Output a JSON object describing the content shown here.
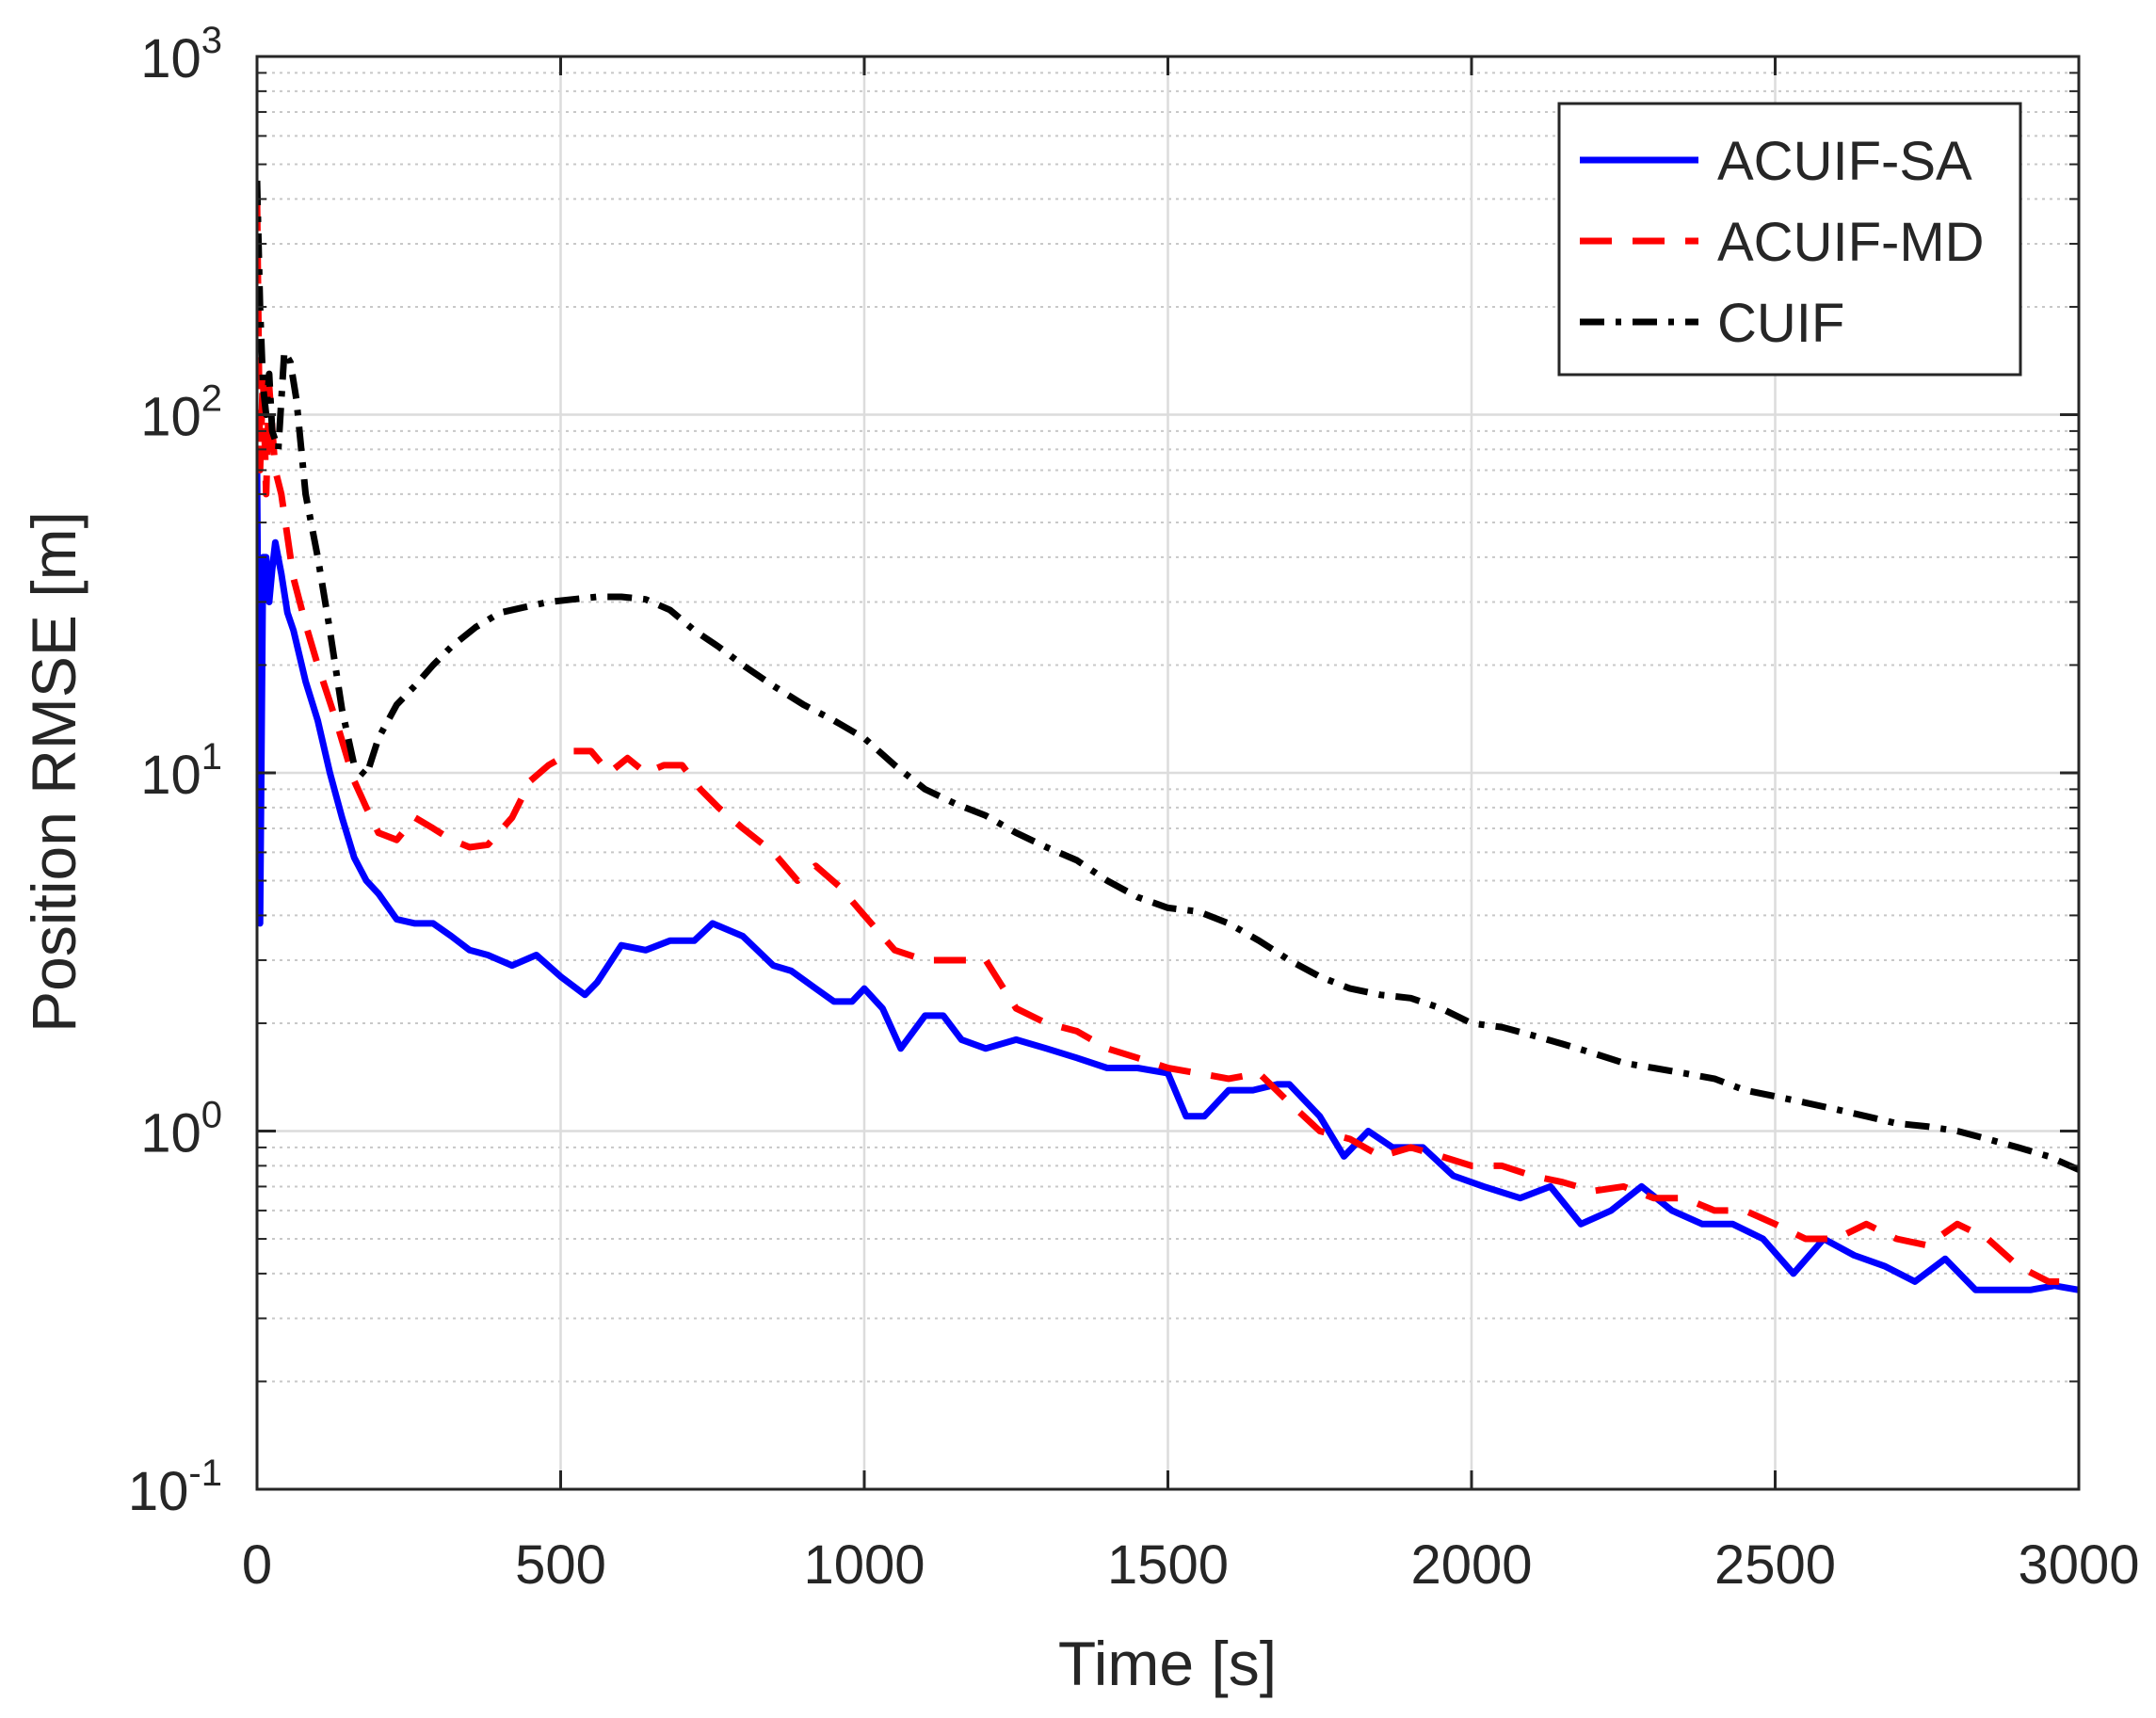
{
  "chart_data": {
    "type": "line",
    "title": "",
    "xlabel": "Time [s]",
    "ylabel": "Position RMSE [m]",
    "xlim": [
      0,
      3000
    ],
    "ylim": [
      0.1,
      1000
    ],
    "yscale": "log",
    "grid": true,
    "legend_position": "top-right",
    "x_ticks": [
      0,
      500,
      1000,
      1500,
      2000,
      2500,
      3000
    ],
    "x_tick_labels": [
      "0",
      "500",
      "1000",
      "1500",
      "2000",
      "2500",
      "3000"
    ],
    "y_ticks": [
      {
        "value": 0.1,
        "base": "10",
        "exp": "-1"
      },
      {
        "value": 1,
        "base": "10",
        "exp": "0"
      },
      {
        "value": 10,
        "base": "10",
        "exp": "1"
      },
      {
        "value": 100,
        "base": "10",
        "exp": "2"
      },
      {
        "value": 1000,
        "base": "10",
        "exp": "3"
      }
    ],
    "series": [
      {
        "name": "ACUIF-SA",
        "color": "#0000ff",
        "style": "solid",
        "x": [
          0,
          5,
          10,
          15,
          20,
          25,
          30,
          40,
          50,
          60,
          80,
          100,
          120,
          140,
          160,
          180,
          200,
          230,
          260,
          290,
          320,
          350,
          380,
          420,
          460,
          500,
          540,
          560,
          600,
          640,
          680,
          720,
          750,
          800,
          850,
          880,
          920,
          950,
          980,
          1000,
          1030,
          1060,
          1100,
          1130,
          1160,
          1200,
          1250,
          1300,
          1350,
          1400,
          1450,
          1500,
          1530,
          1560,
          1600,
          1640,
          1680,
          1700,
          1750,
          1790,
          1830,
          1870,
          1920,
          1970,
          2020,
          2080,
          2130,
          2180,
          2230,
          2280,
          2330,
          2380,
          2430,
          2480,
          2530,
          2580,
          2630,
          2680,
          2730,
          2780,
          2830,
          2870,
          2920,
          2960,
          3000
        ],
        "y": [
          70,
          3.8,
          40,
          40,
          30,
          37,
          44,
          36,
          28,
          25,
          18,
          14,
          10,
          7.5,
          5.8,
          5.0,
          4.6,
          3.9,
          3.8,
          3.8,
          3.5,
          3.2,
          3.1,
          2.9,
          3.1,
          2.7,
          2.4,
          2.6,
          3.3,
          3.2,
          3.4,
          3.4,
          3.8,
          3.5,
          2.9,
          2.8,
          2.5,
          2.3,
          2.3,
          2.5,
          2.2,
          1.7,
          2.1,
          2.1,
          1.8,
          1.7,
          1.8,
          1.7,
          1.6,
          1.5,
          1.5,
          1.45,
          1.1,
          1.1,
          1.3,
          1.3,
          1.35,
          1.35,
          1.1,
          0.85,
          1.0,
          0.9,
          0.9,
          0.75,
          0.7,
          0.65,
          0.7,
          0.55,
          0.6,
          0.7,
          0.6,
          0.55,
          0.55,
          0.5,
          0.4,
          0.5,
          0.45,
          0.42,
          0.38,
          0.44,
          0.36,
          0.36,
          0.36,
          0.37,
          0.36
        ]
      },
      {
        "name": "ACUIF-MD",
        "color": "#ff0000",
        "style": "dashed",
        "x": [
          0,
          5,
          10,
          15,
          20,
          30,
          40,
          60,
          80,
          100,
          130,
          160,
          180,
          200,
          230,
          260,
          290,
          320,
          350,
          380,
          420,
          450,
          480,
          520,
          550,
          580,
          610,
          640,
          670,
          700,
          730,
          760,
          800,
          850,
          890,
          920,
          960,
          1000,
          1050,
          1100,
          1150,
          1200,
          1250,
          1300,
          1350,
          1400,
          1450,
          1500,
          1550,
          1600,
          1650,
          1700,
          1750,
          1800,
          1850,
          1900,
          1950,
          2000,
          2050,
          2100,
          2150,
          2200,
          2250,
          2300,
          2350,
          2400,
          2450,
          2500,
          2550,
          2600,
          2650,
          2700,
          2750,
          2800,
          2850,
          2900,
          2950,
          3000
        ],
        "y": [
          400,
          70,
          130,
          60,
          120,
          70,
          60,
          35,
          26,
          20,
          14,
          9.5,
          8.0,
          6.8,
          6.5,
          7.5,
          7.0,
          6.5,
          6.2,
          6.3,
          7.5,
          9.5,
          10.5,
          11.5,
          11.5,
          10.0,
          11.0,
          10.0,
          10.5,
          10.5,
          9.0,
          8.0,
          7.0,
          6.0,
          5.0,
          5.5,
          4.8,
          4.0,
          3.2,
          3.0,
          3.0,
          3.0,
          2.2,
          2.0,
          1.9,
          1.7,
          1.6,
          1.5,
          1.45,
          1.4,
          1.45,
          1.2,
          1.0,
          0.95,
          0.85,
          0.9,
          0.85,
          0.8,
          0.8,
          0.75,
          0.72,
          0.68,
          0.7,
          0.65,
          0.65,
          0.6,
          0.6,
          0.55,
          0.5,
          0.5,
          0.55,
          0.5,
          0.48,
          0.55,
          0.5,
          0.42,
          0.38,
          0.38
        ]
      },
      {
        "name": "CUIF",
        "color": "#000000",
        "style": "dashdot",
        "x": [
          0,
          5,
          10,
          15,
          20,
          25,
          35,
          45,
          55,
          65,
          80,
          100,
          120,
          140,
          160,
          180,
          200,
          230,
          260,
          290,
          320,
          360,
          400,
          440,
          480,
          520,
          560,
          600,
          640,
          680,
          720,
          760,
          800,
          850,
          900,
          950,
          1000,
          1050,
          1100,
          1150,
          1200,
          1250,
          1300,
          1350,
          1400,
          1450,
          1500,
          1550,
          1600,
          1650,
          1700,
          1750,
          1800,
          1850,
          1900,
          1950,
          2000,
          2050,
          2100,
          2150,
          2200,
          2250,
          2300,
          2350,
          2400,
          2450,
          2500,
          2550,
          2600,
          2650,
          2700,
          2750,
          2800,
          2850,
          2900,
          2950,
          3000
        ],
        "y": [
          450,
          200,
          120,
          100,
          130,
          90,
          80,
          150,
          140,
          110,
          60,
          40,
          25,
          15,
          10.5,
          9.8,
          12.5,
          15.5,
          17.5,
          20,
          22.5,
          25.5,
          28,
          29,
          30,
          30.5,
          31,
          31,
          30.5,
          28.5,
          25,
          22.5,
          20,
          17.5,
          15.5,
          14,
          12.5,
          10.5,
          9.0,
          8.2,
          7.6,
          6.8,
          6.2,
          5.7,
          5.0,
          4.5,
          4.2,
          4.1,
          3.8,
          3.4,
          3.0,
          2.7,
          2.5,
          2.4,
          2.35,
          2.2,
          2.0,
          1.95,
          1.85,
          1.75,
          1.65,
          1.55,
          1.5,
          1.45,
          1.4,
          1.3,
          1.25,
          1.2,
          1.15,
          1.1,
          1.05,
          1.03,
          1.0,
          0.95,
          0.9,
          0.85,
          0.78
        ]
      }
    ]
  }
}
